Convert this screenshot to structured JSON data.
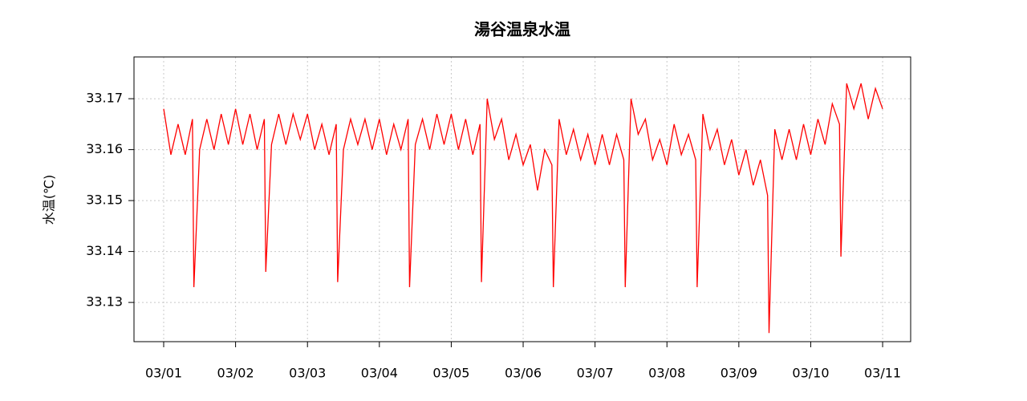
{
  "chart_data": {
    "type": "line",
    "title": "湯谷温泉水温",
    "y_label": "水温(℃)",
    "x": [
      0,
      0.1,
      0.2,
      0.3,
      0.4,
      0.42,
      0.5,
      0.6,
      0.7,
      0.8,
      0.9,
      1.0,
      1.1,
      1.2,
      1.3,
      1.4,
      1.42,
      1.5,
      1.6,
      1.7,
      1.8,
      1.9,
      2.0,
      2.1,
      2.2,
      2.3,
      2.4,
      2.42,
      2.5,
      2.6,
      2.7,
      2.8,
      2.9,
      3.0,
      3.1,
      3.2,
      3.3,
      3.4,
      3.42,
      3.5,
      3.6,
      3.7,
      3.8,
      3.9,
      4.0,
      4.1,
      4.2,
      4.3,
      4.4,
      4.42,
      4.5,
      4.6,
      4.7,
      4.8,
      4.9,
      5.0,
      5.1,
      5.2,
      5.3,
      5.4,
      5.42,
      5.5,
      5.6,
      5.7,
      5.8,
      5.9,
      6.0,
      6.1,
      6.2,
      6.3,
      6.4,
      6.42,
      6.5,
      6.6,
      6.7,
      6.8,
      6.9,
      7.0,
      7.1,
      7.2,
      7.3,
      7.4,
      7.42,
      7.5,
      7.6,
      7.7,
      7.8,
      7.9,
      8.0,
      8.1,
      8.2,
      8.3,
      8.4,
      8.42,
      8.5,
      8.6,
      8.7,
      8.8,
      8.9,
      9.0,
      9.1,
      9.2,
      9.3,
      9.4,
      9.42,
      9.5,
      9.6,
      9.7,
      9.8,
      9.9,
      10.0
    ],
    "series": [
      {
        "name": "水温",
        "color": "#ff0000",
        "values": [
          33.168,
          33.159,
          33.165,
          33.159,
          33.166,
          33.133,
          33.16,
          33.166,
          33.16,
          33.167,
          33.161,
          33.168,
          33.161,
          33.167,
          33.16,
          33.166,
          33.136,
          33.161,
          33.167,
          33.161,
          33.167,
          33.162,
          33.167,
          33.16,
          33.165,
          33.159,
          33.165,
          33.134,
          33.16,
          33.166,
          33.161,
          33.166,
          33.16,
          33.166,
          33.159,
          33.165,
          33.16,
          33.166,
          33.133,
          33.161,
          33.166,
          33.16,
          33.167,
          33.161,
          33.167,
          33.16,
          33.166,
          33.159,
          33.165,
          33.134,
          33.17,
          33.162,
          33.166,
          33.158,
          33.163,
          33.157,
          33.161,
          33.152,
          33.16,
          33.157,
          33.133,
          33.166,
          33.159,
          33.164,
          33.158,
          33.163,
          33.157,
          33.163,
          33.157,
          33.163,
          33.158,
          33.133,
          33.17,
          33.163,
          33.166,
          33.158,
          33.162,
          33.157,
          33.165,
          33.159,
          33.163,
          33.158,
          33.133,
          33.167,
          33.16,
          33.164,
          33.157,
          33.162,
          33.155,
          33.16,
          33.153,
          33.158,
          33.151,
          33.124,
          33.164,
          33.158,
          33.164,
          33.158,
          33.165,
          33.159,
          33.166,
          33.161,
          33.169,
          33.165,
          33.139,
          33.173,
          33.168,
          33.173,
          33.166,
          33.172,
          33.168
        ]
      }
    ],
    "xlim": [
      -0.413,
      10.39
    ],
    "xticks": [
      {
        "value": 0,
        "label": "03/01"
      },
      {
        "value": 1,
        "label": "03/02"
      },
      {
        "value": 2,
        "label": "03/03"
      },
      {
        "value": 3,
        "label": "03/04"
      },
      {
        "value": 4,
        "label": "03/05"
      },
      {
        "value": 5,
        "label": "03/06"
      },
      {
        "value": 6,
        "label": "03/07"
      },
      {
        "value": 7,
        "label": "03/08"
      },
      {
        "value": 8,
        "label": "03/09"
      },
      {
        "value": 9,
        "label": "03/10"
      },
      {
        "value": 10,
        "label": "03/11"
      }
    ],
    "ylim": [
      33.1223,
      33.1782
    ],
    "yticks": [
      33.13,
      33.14,
      33.15,
      33.16,
      33.17
    ],
    "grid": true
  }
}
